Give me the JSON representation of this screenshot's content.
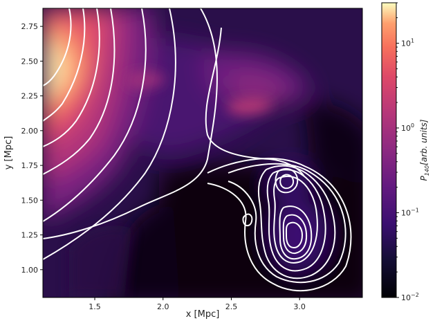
{
  "chart_data": {
    "type": "heatmap",
    "xlabel": "x [Mpc]",
    "ylabel": "y [Mpc]",
    "xlim": [
      1.12,
      3.46
    ],
    "ylim": [
      0.8,
      2.88
    ],
    "x_ticks": [
      {
        "v": 1.5,
        "t": "1.5"
      },
      {
        "v": 2.0,
        "t": "2.0"
      },
      {
        "v": 2.5,
        "t": "2.5"
      },
      {
        "v": 3.0,
        "t": "3.0"
      }
    ],
    "y_ticks": [
      {
        "v": 1.0,
        "t": "1.00"
      },
      {
        "v": 1.25,
        "t": "1.25"
      },
      {
        "v": 1.5,
        "t": "1.50"
      },
      {
        "v": 1.75,
        "t": "1.75"
      },
      {
        "v": 2.0,
        "t": "2.00"
      },
      {
        "v": 2.25,
        "t": "2.25"
      },
      {
        "v": 2.5,
        "t": "2.50"
      },
      {
        "v": 2.75,
        "t": "2.75"
      }
    ],
    "colorbar": {
      "label": "P_140 [arb. units]",
      "scale": "log",
      "range": [
        0.01,
        30
      ],
      "ticks": [
        {
          "v": 0.01,
          "base": "10",
          "exp": "−2"
        },
        {
          "v": 0.1,
          "base": "10",
          "exp": "−1"
        },
        {
          "v": 1,
          "base": "10",
          "exp": "0"
        },
        {
          "v": 10,
          "base": "10",
          "exp": "1"
        }
      ],
      "colormap": "magma"
    },
    "contour_color": "#ffffff"
  }
}
